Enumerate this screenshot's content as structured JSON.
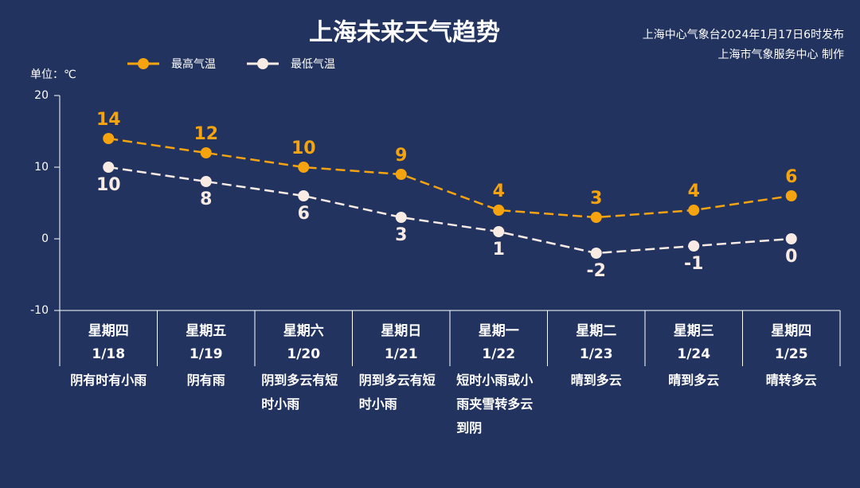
{
  "chart_data": {
    "type": "line",
    "title": "上海未来天气趋势",
    "source": [
      "上海中心气象台2024年1月17日6时发布",
      "上海市气象服务中心 制作"
    ],
    "unit_label": "单位：℃",
    "categories": [
      "星期四",
      "星期五",
      "星期六",
      "星期日",
      "星期一",
      "星期二",
      "星期三",
      "星期四"
    ],
    "dates": [
      "1/18",
      "1/19",
      "1/20",
      "1/21",
      "1/22",
      "1/23",
      "1/24",
      "1/25"
    ],
    "weather": [
      "阴有时有小雨",
      "阴有雨",
      "阴到多云有短时小雨",
      "阴到多云有短时小雨",
      "短时小雨或小雨夹雪转多云到阴",
      "晴到多云",
      "晴到多云",
      "晴转多云"
    ],
    "series": [
      {
        "name": "最高气温",
        "color": "#f5a30f",
        "values": [
          14,
          12,
          10,
          9,
          4,
          3,
          4,
          6
        ]
      },
      {
        "name": "最低气温",
        "color": "#f7ebe3",
        "values": [
          10,
          8,
          6,
          3,
          1,
          -2,
          -1,
          0
        ]
      }
    ],
    "ylim": [
      -10,
      20
    ],
    "yticks": [
      -10,
      0,
      10,
      20
    ]
  }
}
